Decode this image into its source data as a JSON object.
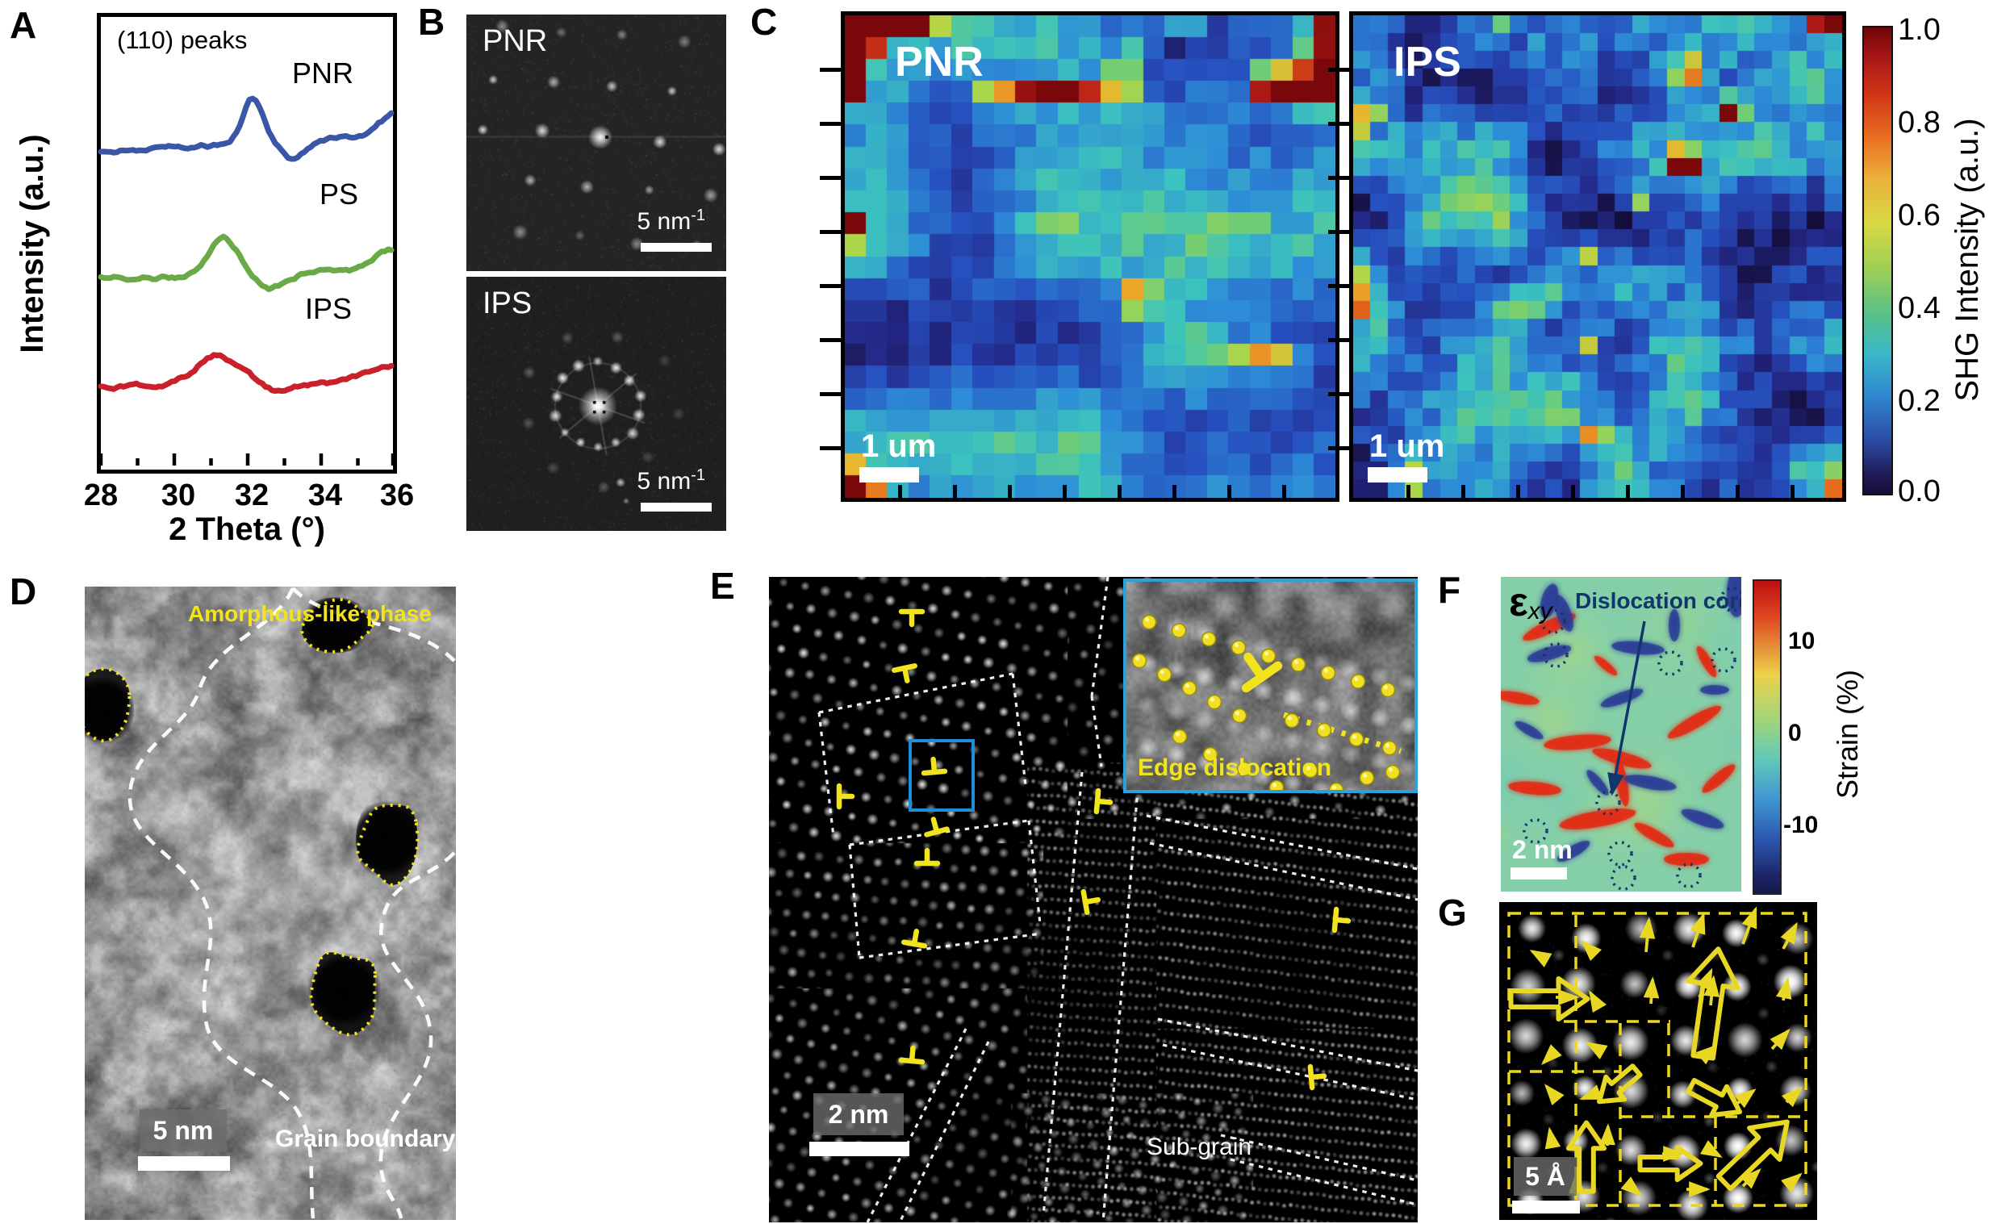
{
  "panels": {
    "a": {
      "label": "A",
      "title": "(110) peaks",
      "ylabel": "Intensity (a.u.)",
      "xlabel": "2 Theta (°)",
      "xticks": [
        "28",
        "30",
        "32",
        "34",
        "36"
      ],
      "series": [
        {
          "name": "PNR",
          "color": "#3a57a7"
        },
        {
          "name": "PS",
          "color": "#6aaa46"
        },
        {
          "name": "IPS",
          "color": "#c9202a"
        }
      ]
    },
    "b": {
      "label": "B",
      "top": {
        "name": "PNR",
        "sb_main": "5 nm",
        "sb_sup": "-1"
      },
      "bottom": {
        "name": "IPS",
        "sb_main": "5 nm",
        "sb_sup": "-1"
      }
    },
    "c": {
      "label": "C",
      "left_map": {
        "name": "PNR",
        "scalebar": "1 um"
      },
      "right_map": {
        "name": "IPS",
        "scalebar": "1 um"
      },
      "colorbar": {
        "ticks": [
          "1.0",
          "0.8",
          "0.6",
          "0.4",
          "0.2",
          "0.0"
        ],
        "label": "SHG Intensity (a.u.)"
      }
    },
    "d": {
      "label": "D",
      "amorphous_label": "Amorphous-like phase",
      "grain_label": "Grain boundary",
      "scalebar": "5 nm"
    },
    "e": {
      "label": "E",
      "inset_caption": "Edge dislocation",
      "subgrain_label": "Sub-grain",
      "scalebar": "2 nm"
    },
    "f": {
      "label": "F",
      "map_symbol": "ε",
      "map_symbol_sub": "xy",
      "annotation": "Dislocation core",
      "scalebar": "2 nm",
      "colorbar": {
        "ticks": [
          "10",
          "0",
          "-10"
        ],
        "label": "Strain (%)"
      }
    },
    "g": {
      "label": "G",
      "scalebar": "5 Å"
    }
  },
  "colors": {
    "pnr_blue": "#3a57a7",
    "ps_green": "#6aaa46",
    "ips_red": "#c9202a",
    "annotation_yellow": "#f2e41c",
    "inset_border_blue": "#2aa2de",
    "core_navy": "#12356b"
  },
  "chart_data": [
    {
      "id": "A",
      "type": "line",
      "title": "(110) peaks",
      "xlabel": "2 Theta (°)",
      "ylabel": "Intensity (a.u.)",
      "xlim": [
        28,
        36
      ],
      "grid": false,
      "x": [
        28,
        28.5,
        29,
        29.5,
        30,
        30.5,
        31,
        31.5,
        32,
        32.5,
        33,
        33.5,
        34,
        34.5,
        35,
        35.5,
        36
      ],
      "series": [
        {
          "name": "PNR",
          "color": "#3a57a7",
          "peak_2theta": 32.2,
          "values": [
            0.7,
            0.702,
            0.705,
            0.708,
            0.712,
            0.718,
            0.728,
            0.745,
            0.79,
            0.8,
            0.71,
            0.675,
            0.67,
            0.676,
            0.685,
            0.7,
            0.735
          ]
        },
        {
          "name": "PS",
          "color": "#6aaa46",
          "peak_2theta": 31.4,
          "values": [
            0.43,
            0.432,
            0.436,
            0.442,
            0.452,
            0.468,
            0.492,
            0.505,
            0.48,
            0.44,
            0.408,
            0.398,
            0.4,
            0.405,
            0.412,
            0.422,
            0.445
          ]
        },
        {
          "name": "IPS",
          "color": "#c9202a",
          "peak_2theta": 31.3,
          "values": [
            0.17,
            0.172,
            0.176,
            0.182,
            0.19,
            0.2,
            0.212,
            0.22,
            0.215,
            0.205,
            0.195,
            0.185,
            0.178,
            0.175,
            0.176,
            0.18,
            0.19
          ]
        }
      ],
      "note": "XRD intensity in arbitrary units; curves vertically offset"
    },
    {
      "id": "C",
      "type": "heatmap",
      "maps": [
        "PNR",
        "IPS"
      ],
      "colorbar_label": "SHG Intensity (a.u.)",
      "colorbar_range": [
        0.0,
        1.0
      ],
      "colorbar_ticks": [
        1.0,
        0.8,
        0.6,
        0.4,
        0.2,
        0.0
      ],
      "scalebar": "1 um",
      "description": "Normalized SHG intensity maps; mostly 0.1-0.4 (blue) with sparse hotspots near 1.0; PNR map has coarser speckle than IPS"
    },
    {
      "id": "F",
      "type": "heatmap",
      "map": "εxy strain field",
      "colorbar_label": "Strain (%)",
      "colorbar_ticks": [
        10,
        0,
        -10
      ],
      "scalebar": "2 nm",
      "description": "Near-zero (green) background with paired +/- (red/blue) lobes at dislocation cores (dotted circles)"
    }
  ]
}
